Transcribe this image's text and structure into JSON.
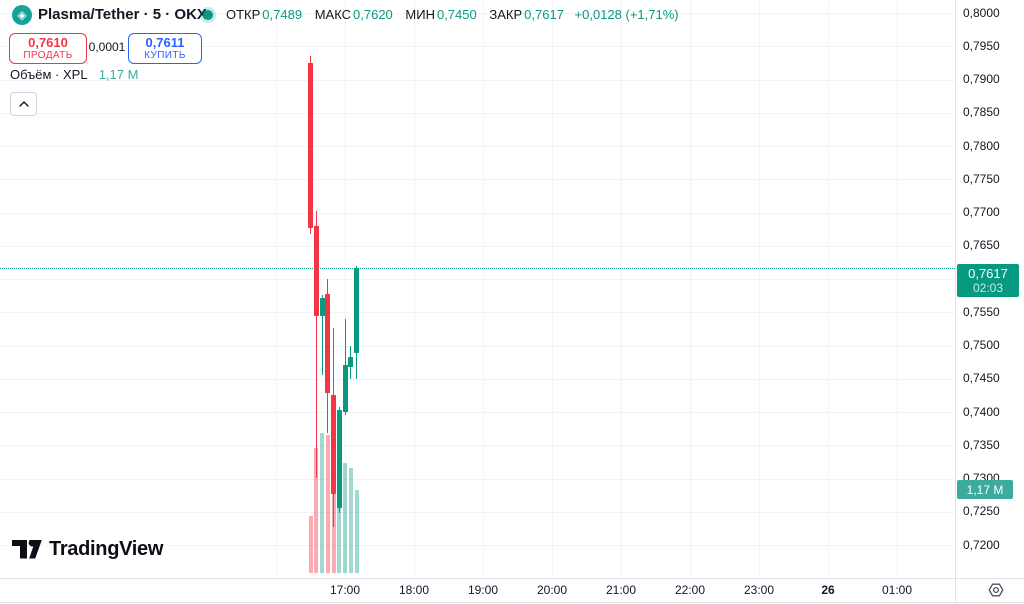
{
  "header": {
    "symbol_title": "Plasma/Tether · 5 · OKX",
    "ohlc": {
      "o_label": "ОТКР",
      "o": "0,7489",
      "h_label": "МАКС",
      "h": "0,7620",
      "l_label": "МИН",
      "l": "0,7450",
      "c_label": "ЗАКР",
      "c": "0,7617",
      "change": "+0,0128 (+1,71%)"
    },
    "sell_button": {
      "price": "0,7610",
      "label": "ПРОДАТЬ"
    },
    "spread": "0,0001",
    "buy_button": {
      "price": "0,7611",
      "label": "КУПИТЬ"
    },
    "volume_row": {
      "label": "Объём · XPL",
      "value": "1,17 M"
    }
  },
  "badges": {
    "price": {
      "value": "0,7617",
      "countdown": "02:03"
    },
    "volume": {
      "value": "1,17 M"
    }
  },
  "axes": {
    "price_labels": [
      "0,8000",
      "0,7950",
      "0,7900",
      "0,7850",
      "0,7800",
      "0,7750",
      "0,7700",
      "0,7650",
      "0,7600",
      "0,7550",
      "0,7500",
      "0,7450",
      "0,7400",
      "0,7350",
      "0,7300",
      "0,7250",
      "0,7200"
    ],
    "time_labels": [
      "17:00",
      "18:00",
      "19:00",
      "20:00",
      "21:00",
      "22:00",
      "23:00",
      "26",
      "01:00"
    ],
    "bold_time_label": "26"
  },
  "watermark_text": "TradingView",
  "colors": {
    "up": "#089981",
    "down": "#f23645",
    "vol_up": "rgba(8,153,129,0.38)",
    "vol_down": "rgba(242,54,69,0.42)",
    "grid": "#f0f3fa",
    "text": "#131722",
    "buy_blue": "#2962ff",
    "volume_accent": "#3aab9e",
    "symbol_logo_bg": "#17a297"
  },
  "chart_data": {
    "type": "candlestick",
    "title": "Plasma/Tether · 5 · OKX",
    "interval_minutes": 5,
    "legend_position": "top-left",
    "grid": true,
    "price_axis": {
      "min": 0.72,
      "max": 0.8,
      "tick": 0.005
    },
    "time_axis_visible": [
      "17:00",
      "18:00",
      "19:00",
      "20:00",
      "21:00",
      "22:00",
      "23:00",
      "26",
      "01:00"
    ],
    "candles": [
      {
        "t": "16:30",
        "o": 0.7925,
        "h": 0.7935,
        "l": 0.7668,
        "c": 0.7676
      },
      {
        "t": "16:35",
        "o": 0.768,
        "h": 0.7702,
        "l": 0.73,
        "c": 0.7544
      },
      {
        "t": "16:40",
        "o": 0.7544,
        "h": 0.7576,
        "l": 0.7455,
        "c": 0.7572
      },
      {
        "t": "16:45",
        "o": 0.7578,
        "h": 0.76,
        "l": 0.7368,
        "c": 0.7428
      },
      {
        "t": "16:50",
        "o": 0.7426,
        "h": 0.7526,
        "l": 0.7227,
        "c": 0.7276
      },
      {
        "t": "16:55",
        "o": 0.7255,
        "h": 0.7408,
        "l": 0.7248,
        "c": 0.7403
      },
      {
        "t": "17:00",
        "o": 0.74,
        "h": 0.754,
        "l": 0.7395,
        "c": 0.747
      },
      {
        "t": "17:05",
        "o": 0.7468,
        "h": 0.75,
        "l": 0.745,
        "c": 0.7483
      },
      {
        "t": "17:10",
        "o": 0.7489,
        "h": 0.762,
        "l": 0.745,
        "c": 0.7617
      }
    ],
    "volume_millions": [
      0.8,
      1.76,
      1.97,
      1.95,
      1.92,
      1.48,
      1.55,
      1.48,
      1.17
    ],
    "last_price": 0.7617,
    "last_bar_countdown": "02:03",
    "last_volume_label": "1,17 M"
  }
}
